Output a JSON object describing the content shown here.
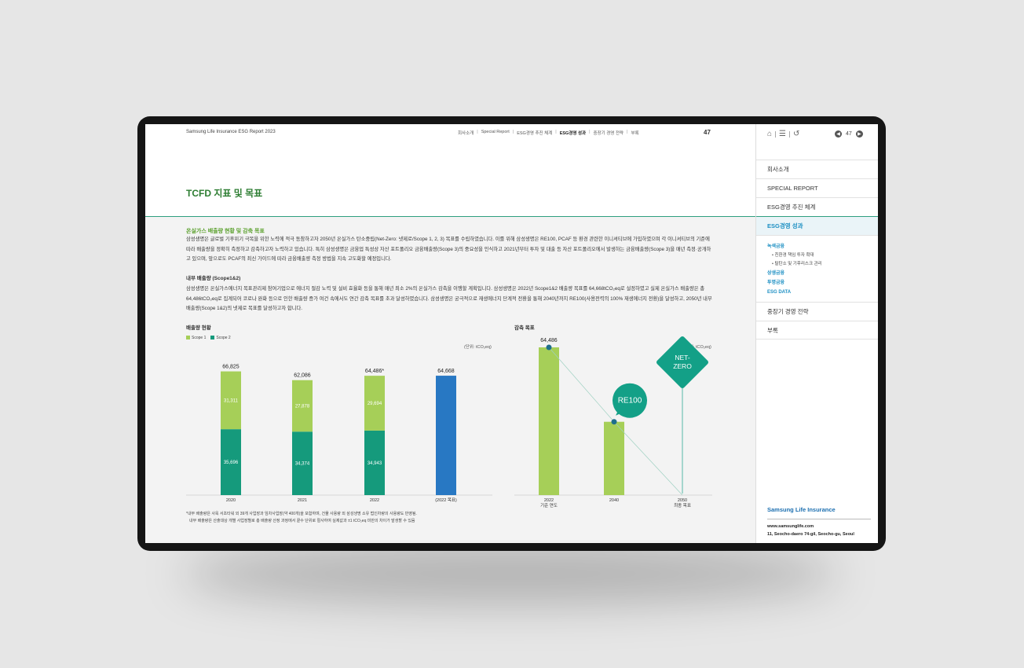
{
  "header": {
    "report_title": "Samsung Life Insurance ESG Report 2023",
    "nav": [
      "회사소개",
      "Special Report",
      "ESG경영 추진 체계",
      "ESG경영 성과",
      "중장기 경영 전략",
      "부록"
    ],
    "nav_active": "ESG경영 성과",
    "page_number": "47"
  },
  "page": {
    "heading": "TCFD 지표 및 목표",
    "section_title": "온실가스 배출량 현황 및 감축 목표",
    "paragraph1": "삼성생명은 글로벌 기후위기 극복을 위한 노력에 적극 동참하고자 2050년 온실가스 탄소중립(Net-Zero: 넷제로/Scope 1, 2, 3) 목표를 수립하였습니다. 이를 위해 삼성생명은 RE100, PCAF 등 환경 관련한 이니셔티브에 가입하였으며 각 이니셔티브의 기준에 따라 배출량을 정확히 측정하고 감축하고자 노력하고 있습니다. 특히 삼성생명은 금융업 특성상 자산 포트폴리오 금융배출량(Scope 3)의 중요성을 인식하고 2021년부터 투자 및 대출 등 자산 포트폴리오에서 발생하는 금융배출량(Scope 3)을 매년 측정·공개하고 있으며, 앞으로도 PCAF의 최신 가이드에 따라 금융배출량 측정 방법을 지속 고도화할 예정입니다.",
    "subsection_title": "내부 배출량 (Scope1&2)",
    "paragraph2": "삼성생명은 온실가스에너지 목표관리제 참여기업으로 에너지 절감 노력 및 설비 효율화 등을 통해 매년 최소 2%의 온실가스 감축을 이행할 계획입니다. 삼성생명은 2022년 Scope1&2 배출량 목표를 64,668tCO₂eq로 설정하였고 실제 온실가스 배출량은 총 64,486tCO₂eq로 집계되어 코로나 완화 등으로 인한 배출량 증가 여건 속에서도 연간 감축 목표를 초과 달성하였습니다. 삼성생명은 궁극적으로 재생에너지 단계적 전환을 통해 2040년까지 RE100(사용전력의 100% 재생에너지 전환)을 달성하고, 2050년 내부 배출량(Scope 1&2)의 넷제로 목표를 달성하고자 합니다.",
    "footnote1": "*내부 배출량은 사옥 서초타워 외 39개 사업장과 임차사업장(약 400개)을 포함하며, 건물 사용량 외 삼성생명 소유 법인차량의 사용량도 반영됨.",
    "footnote2": "내부 배출량은 산출대상 개별 사업장별로 총 배출량 산정 과정에서 끝수 단위로 절사하여 실제값과 ±1 tCO₂eq 미만의 차이가 발생할 수 있음"
  },
  "colors": {
    "scope1": "#a6cf58",
    "scope2": "#159a7c",
    "target": "#2878c3",
    "green": "#a6cf58",
    "teal_badge": "#13a087"
  },
  "chart_data": [
    {
      "type": "bar",
      "title": "배출량 현황",
      "unit": "(단위: tCO₂eq)",
      "categories": [
        "2020",
        "2021",
        "2022",
        "(2022 목표)"
      ],
      "legend": [
        "Scope 1",
        "Scope 2"
      ],
      "series": [
        {
          "name": "Scope 1",
          "values": [
            31311,
            27878,
            29694,
            null
          ]
        },
        {
          "name": "Scope 2",
          "values": [
            35696,
            34374,
            34943,
            null
          ]
        }
      ],
      "target_value": 64668,
      "totals": [
        66825,
        62086,
        64486,
        64668
      ],
      "total_labels": [
        "66,825",
        "62,086",
        "64,486*",
        "64,668"
      ],
      "segment_labels": {
        "Scope 1": [
          "31,311",
          "27,878",
          "29,694"
        ],
        "Scope 2": [
          "35,696",
          "34,374",
          "34,943"
        ]
      }
    },
    {
      "type": "bar",
      "title": "감축 목표",
      "unit": "(단위: tCO₂eq)",
      "categories": [
        "2022",
        "2040",
        "2050"
      ],
      "category_sublabels": [
        "기준 연도",
        "",
        "최종 목표"
      ],
      "values": [
        64486,
        32000,
        0
      ],
      "value_labels": [
        "64,486",
        "",
        ""
      ],
      "badges": [
        "RE100",
        "NET-ZERO"
      ]
    }
  ],
  "sidebar": {
    "page_number": "47",
    "menu": [
      "회사소개",
      "SPECIAL REPORT",
      "ESG경영 추진 체계",
      "ESG경영 성과"
    ],
    "submenu": [
      {
        "label": "녹색금융",
        "level": 1
      },
      {
        "label": "• 친환경 책임 투자 확대",
        "level": 2
      },
      {
        "label": "• 탈탄소 및 기후리스크 관리",
        "level": 2
      },
      {
        "label": "상생금융",
        "level": 1
      },
      {
        "label": "투명금융",
        "level": 1
      },
      {
        "label": "ESG DATA",
        "level": 1
      }
    ],
    "menu_after": [
      "중장기 경영 전략",
      "부록"
    ],
    "brand": "Samsung Life Insurance",
    "website": "www.samsunglife.com",
    "address": "11, Seocho-daero 74-gil, Seocho-gu, Seoul"
  }
}
